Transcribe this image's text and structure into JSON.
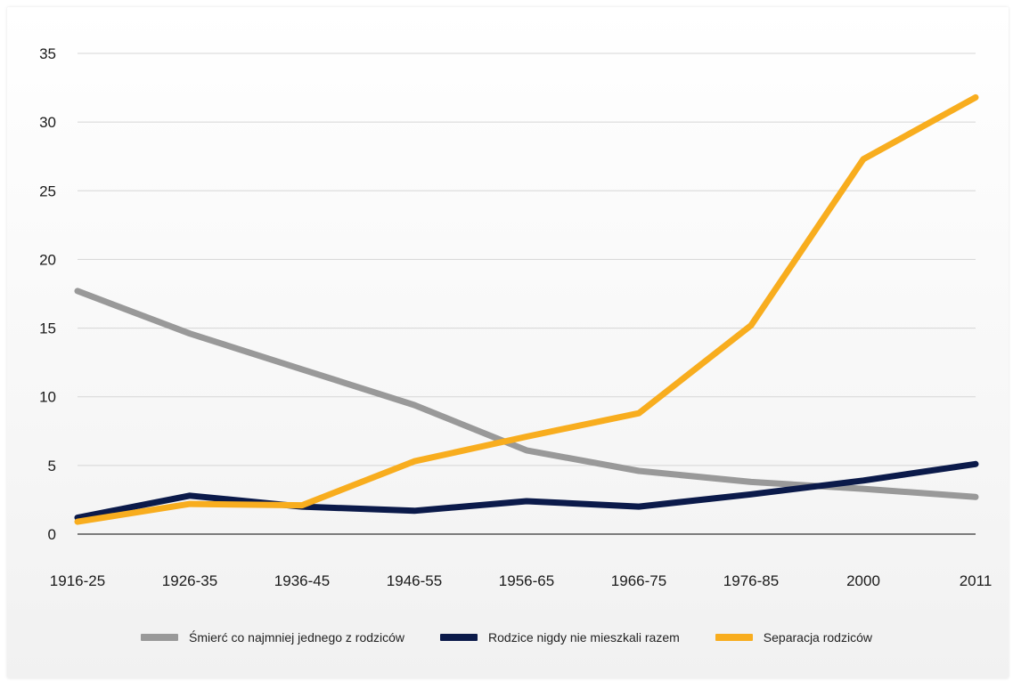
{
  "chart_data": {
    "type": "line",
    "title": "",
    "xlabel": "",
    "ylabel": "",
    "categories": [
      "1916-25",
      "1926-35",
      "1936-45",
      "1946-55",
      "1956-65",
      "1966-75",
      "1976-85",
      "2000",
      "2011"
    ],
    "ylim": [
      0,
      35
    ],
    "yticks": [
      0,
      5,
      10,
      15,
      20,
      25,
      30,
      35
    ],
    "grid": true,
    "legend_position": "bottom",
    "series": [
      {
        "name": "Śmierć co najmniej jednego z rodziców",
        "color": "#999999",
        "values": [
          17.7,
          14.6,
          12.0,
          9.4,
          6.1,
          4.6,
          3.8,
          3.3,
          2.7
        ]
      },
      {
        "name": "Rodzice nigdy nie mieszkali razem",
        "color": "#0b1a4a",
        "values": [
          1.2,
          2.8,
          2.0,
          1.7,
          2.4,
          2.0,
          2.9,
          3.9,
          5.1
        ]
      },
      {
        "name": "Separacja rodziców",
        "color": "#f8ad1e",
        "values": [
          0.9,
          2.2,
          2.1,
          5.3,
          7.1,
          8.8,
          15.2,
          27.3,
          31.8
        ]
      }
    ]
  }
}
